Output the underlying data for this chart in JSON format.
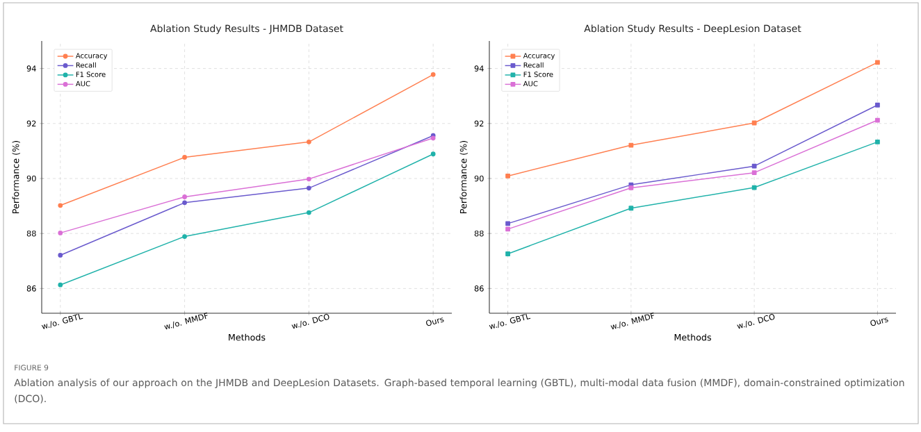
{
  "chart_data": [
    {
      "type": "line",
      "title": "Ablation Study Results - JHMDB Dataset",
      "xlabel": "Methods",
      "ylabel": "Performance (%)",
      "categories": [
        "w./o. GBTL",
        "w./o. MMDF",
        "w./o. DCO",
        "Ours"
      ],
      "series": [
        {
          "name": "Accuracy",
          "color": "#ff7f50",
          "values": [
            89.02,
            90.77,
            91.33,
            93.78
          ]
        },
        {
          "name": "Recall",
          "color": "#6a5acd",
          "values": [
            87.21,
            89.12,
            89.65,
            91.56
          ]
        },
        {
          "name": "F1 Score",
          "color": "#20b2aa",
          "values": [
            86.13,
            87.89,
            88.76,
            90.89
          ]
        },
        {
          "name": "AUC",
          "color": "#da70d6",
          "values": [
            88.02,
            89.33,
            89.98,
            91.47
          ]
        }
      ],
      "ylim": [
        85.1,
        95
      ],
      "yticks": [
        86,
        88,
        90,
        92,
        94
      ],
      "grid": true,
      "legend": "top left",
      "marker": "circle",
      "annotations": [
        "FIGURE 9",
        "Ablation analysis of our approach on the JHMDB and DeepLesion Datasets. Graph-based temporal learning (GBTL), multi-modal data fusion (MMDF), domain-constrained optimization (DCO)."
      ]
    },
    {
      "type": "line",
      "title": "Ablation Study Results - DeepLesion Dataset",
      "xlabel": "Methods",
      "ylabel": "Performance (%)",
      "categories": [
        "w./o. GBTL",
        "w./o. MMDF",
        "w./o. DCO",
        "Ours"
      ],
      "series": [
        {
          "name": "Accuracy",
          "color": "#ff7f50",
          "values": [
            90.09,
            91.21,
            92.02,
            94.22
          ]
        },
        {
          "name": "Recall",
          "color": "#6a5acd",
          "values": [
            88.36,
            89.77,
            90.45,
            92.67
          ]
        },
        {
          "name": "F1 Score",
          "color": "#20b2aa",
          "values": [
            87.26,
            88.92,
            89.67,
            91.33
          ]
        },
        {
          "name": "AUC",
          "color": "#da70d6",
          "values": [
            88.16,
            89.66,
            90.21,
            92.12
          ]
        }
      ],
      "ylim": [
        85.1,
        95
      ],
      "yticks": [
        86,
        88,
        90,
        92,
        94
      ],
      "grid": true,
      "legend": "top left",
      "marker": "square"
    }
  ]
}
